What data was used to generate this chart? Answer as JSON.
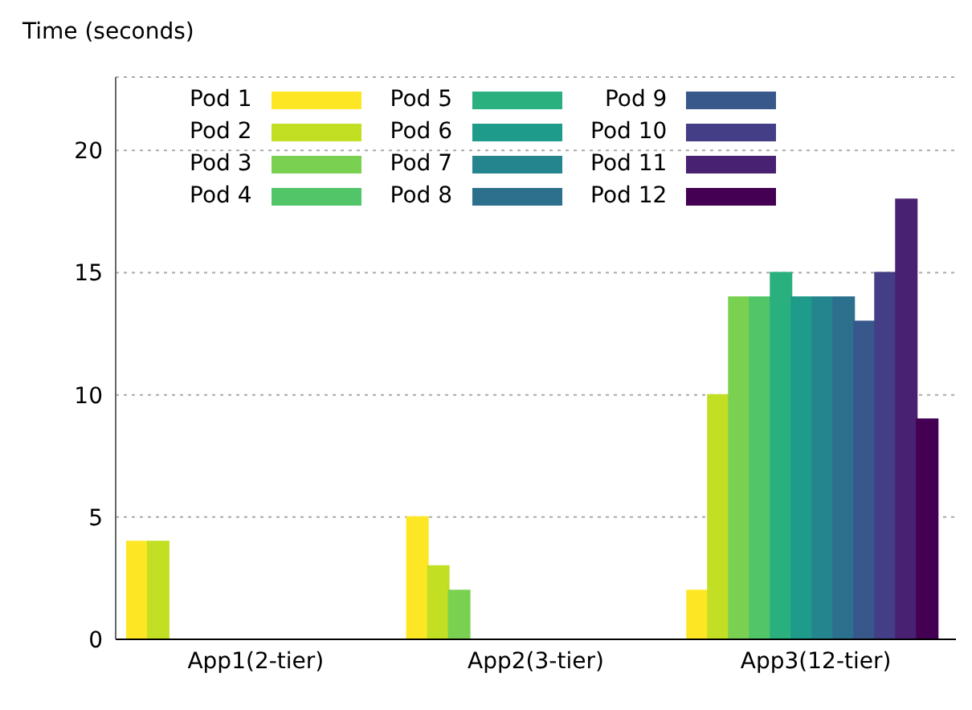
{
  "chart_data": {
    "type": "bar",
    "ylabel": "Time (seconds)",
    "categories": [
      "App1(2-tier)",
      "App2(3-tier)",
      "App3(12-tier)"
    ],
    "series": [
      {
        "name": "Pod 1",
        "color": "#fde725",
        "values": [
          4,
          5,
          2
        ]
      },
      {
        "name": "Pod 2",
        "color": "#c2df23",
        "values": [
          4,
          3,
          10
        ]
      },
      {
        "name": "Pod 3",
        "color": "#7ad151",
        "values": [
          null,
          2,
          14
        ]
      },
      {
        "name": "Pod 4",
        "color": "#52c569",
        "values": [
          null,
          null,
          14
        ]
      },
      {
        "name": "Pod 5",
        "color": "#2ab07f",
        "values": [
          null,
          null,
          15
        ]
      },
      {
        "name": "Pod 6",
        "color": "#1e9b8a",
        "values": [
          null,
          null,
          14
        ]
      },
      {
        "name": "Pod 7",
        "color": "#25858e",
        "values": [
          null,
          null,
          14
        ]
      },
      {
        "name": "Pod 8",
        "color": "#2d708e",
        "values": [
          null,
          null,
          14
        ]
      },
      {
        "name": "Pod 9",
        "color": "#38588c",
        "values": [
          null,
          null,
          13
        ]
      },
      {
        "name": "Pod 10",
        "color": "#433e85",
        "values": [
          null,
          null,
          15
        ]
      },
      {
        "name": "Pod 11",
        "color": "#482173",
        "values": [
          null,
          null,
          18
        ]
      },
      {
        "name": "Pod 12",
        "color": "#440154",
        "values": [
          null,
          null,
          9
        ]
      }
    ],
    "ylim": [
      0,
      23
    ],
    "yticks": [
      0,
      5,
      10,
      15,
      20
    ],
    "grid": "y",
    "legend": "top"
  }
}
